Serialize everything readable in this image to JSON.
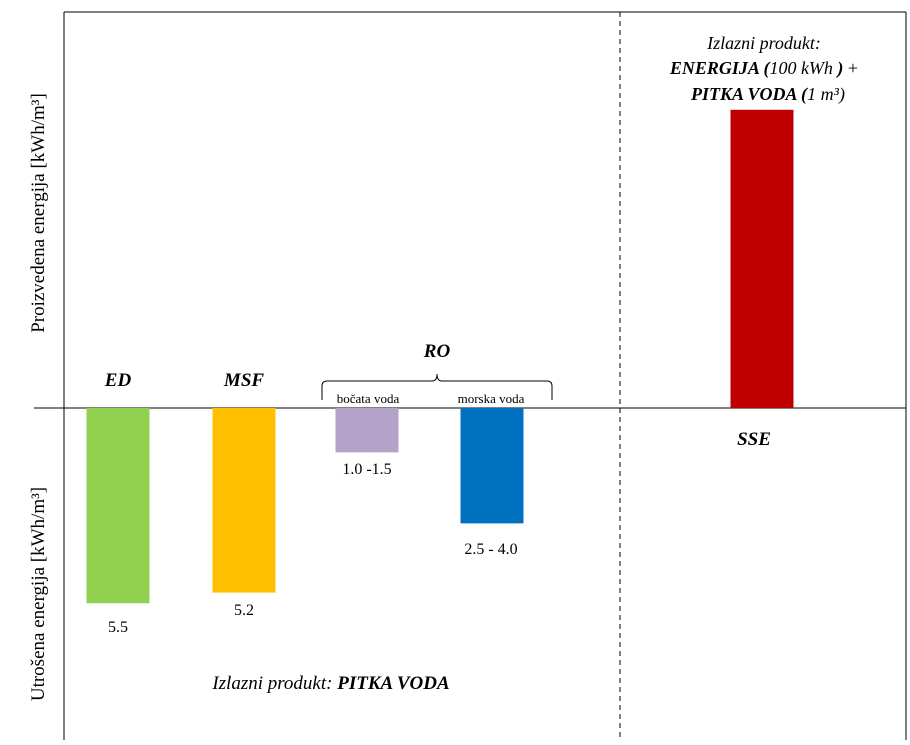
{
  "chart_data": {
    "type": "bar",
    "ylabel_top": "Proizvedena energija [kWh/m³]",
    "ylabel_bottom": "Utrošena energija [kWh/m³]",
    "left_panel": {
      "output_label_prefix": "Izlazni produkt: ",
      "output_label_bold": "PITKA VODA",
      "group_label": "RO",
      "categories": [
        {
          "name": "ED",
          "color": "#92d050",
          "value": -5.5,
          "value_label": "5.5"
        },
        {
          "name": "MSF",
          "color": "#ffc000",
          "value": -5.2,
          "value_label": "5.2"
        },
        {
          "name": "bočata voda",
          "color": "#b4a2c8",
          "value": -1.25,
          "value_label": "1.0 -1.5"
        },
        {
          "name": "morska voda",
          "color": "#0070c0",
          "value": -3.25,
          "value_label": "2.5 - 4.0"
        }
      ]
    },
    "right_panel": {
      "output_label_line1": "Izlazni produkt:",
      "output_label_line2_bold": "ENERGIJA (",
      "output_label_line2_italic": "100 kWh",
      "output_label_line2_bold_end": " )",
      "output_label_line2_plus": " +",
      "output_label_line3_bold": "PITKA VODA (",
      "output_label_line3_italic": "1 m³)",
      "category": {
        "name": "SSE",
        "color": "#c00000",
        "value": 8.4
      }
    }
  }
}
